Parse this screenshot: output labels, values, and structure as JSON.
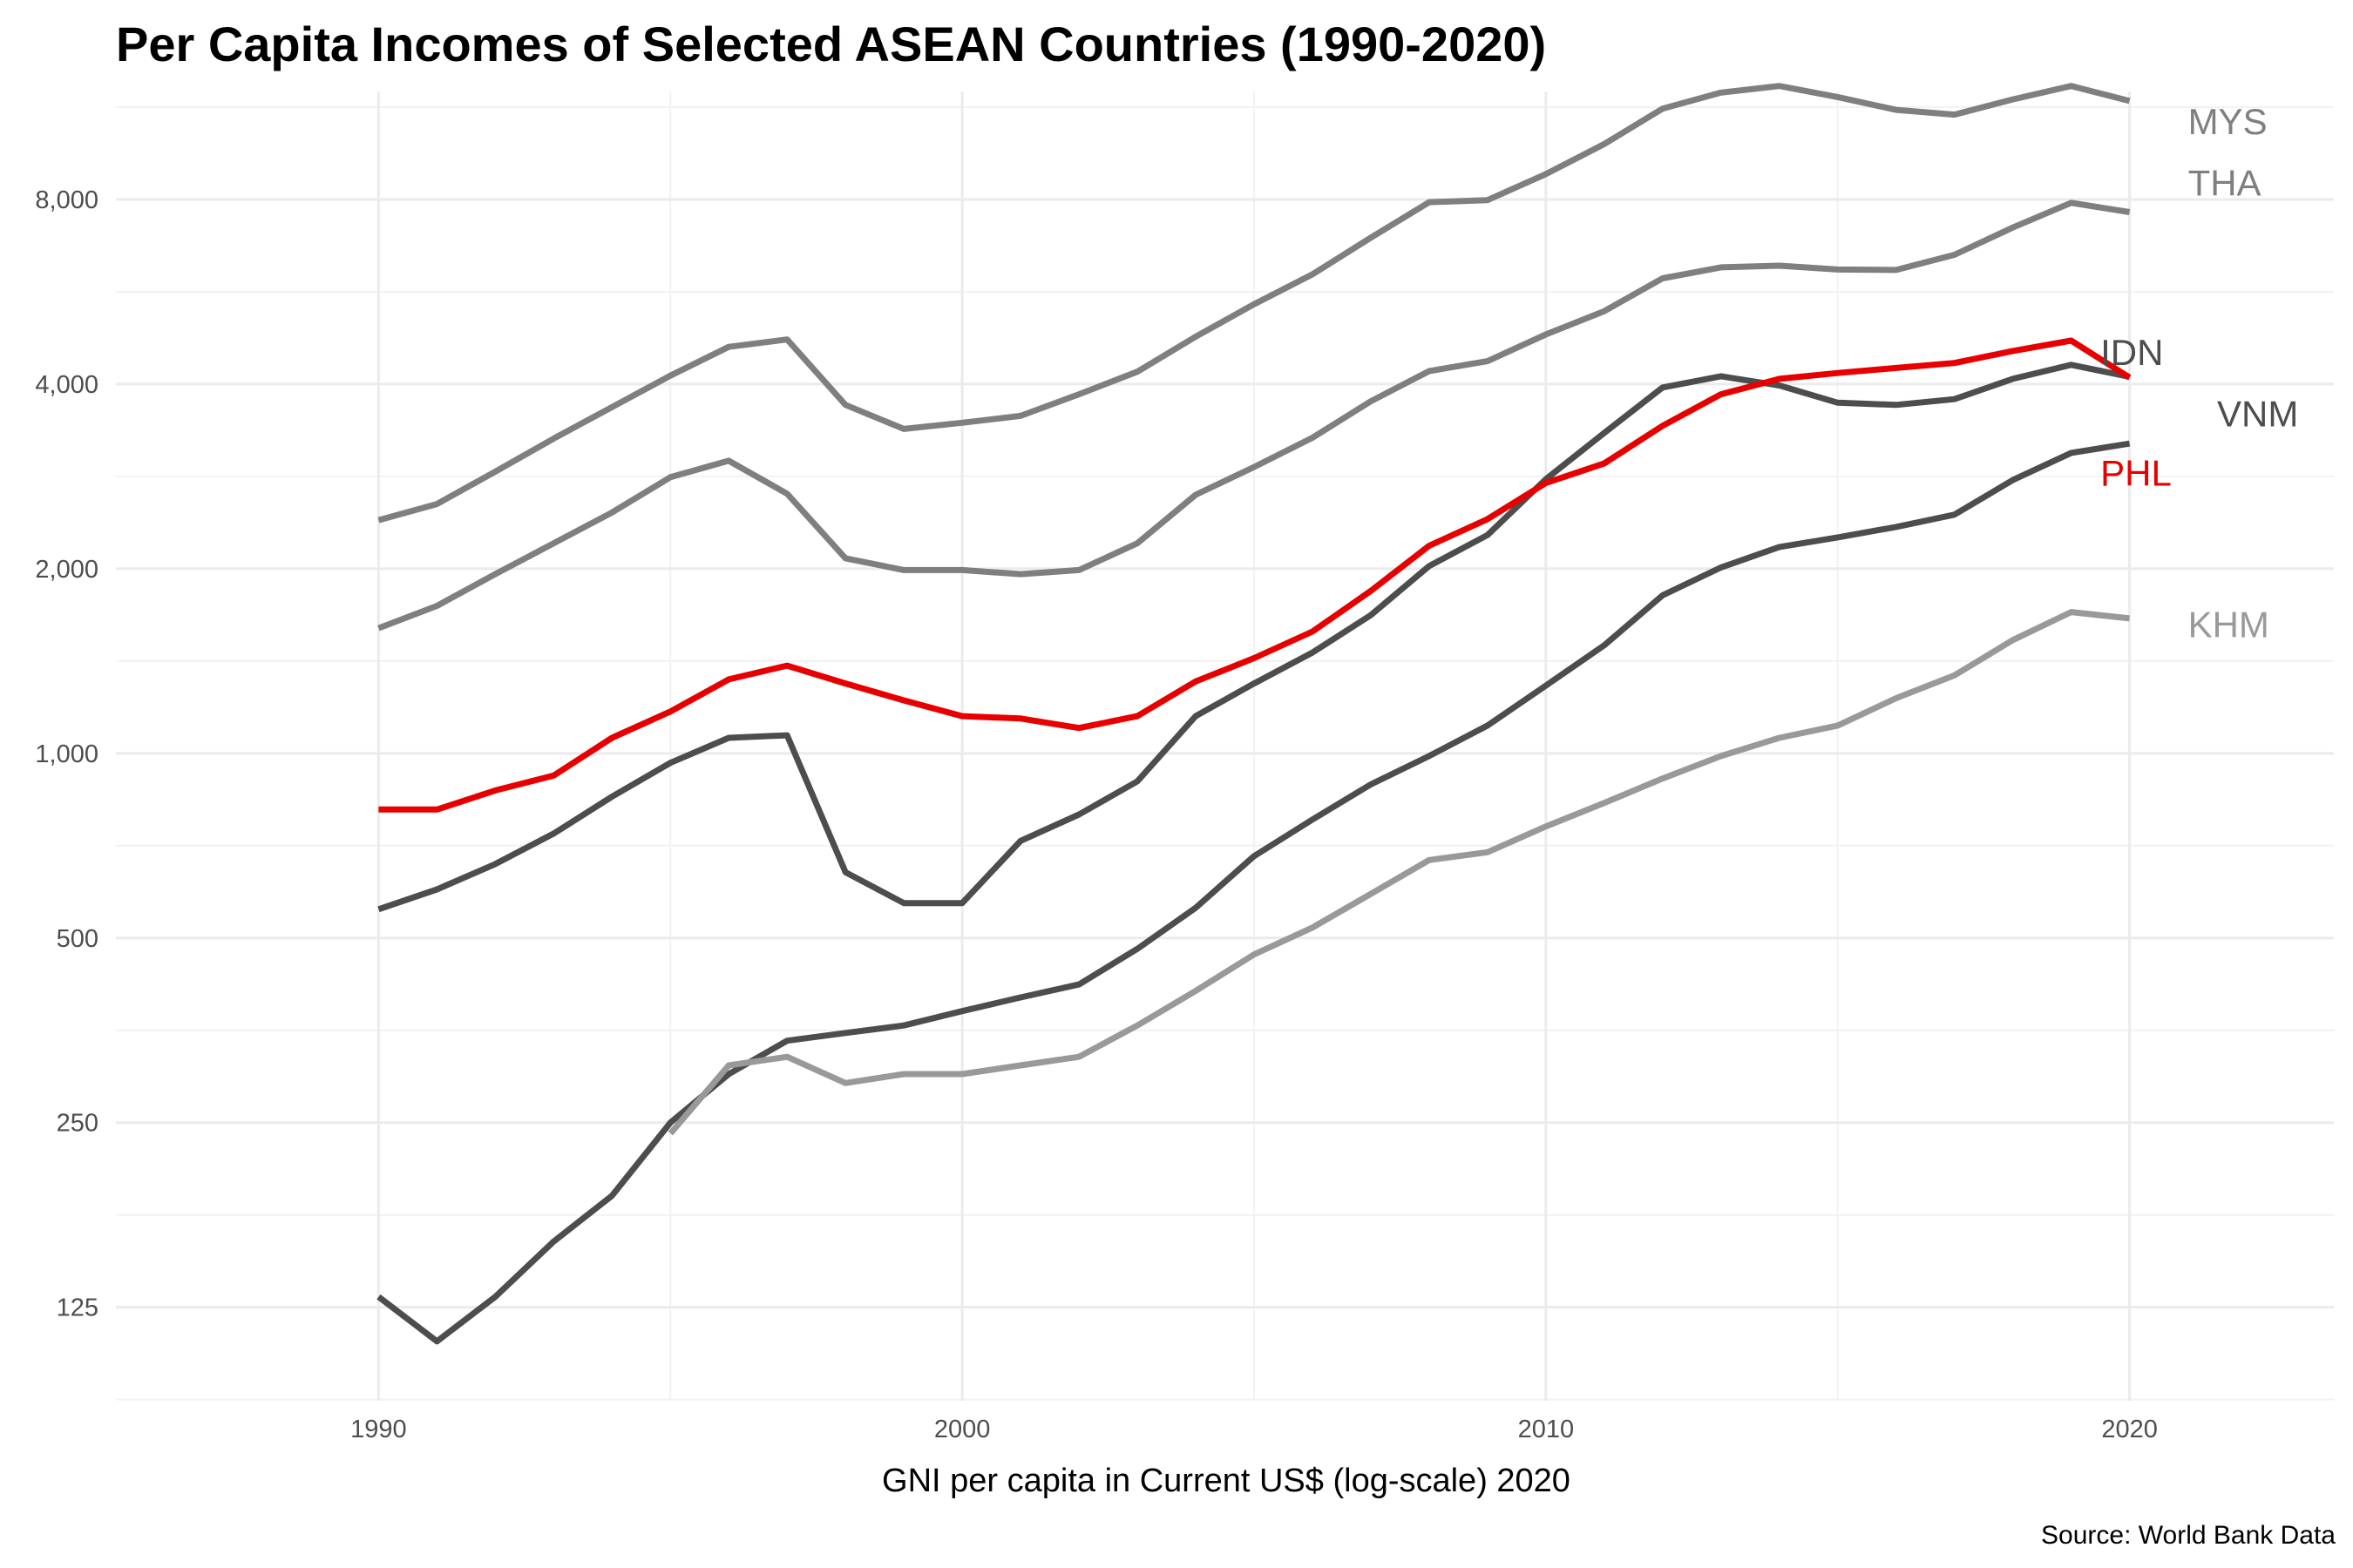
{
  "chart_data": {
    "type": "line",
    "title": "Per Capita Incomes of Selected ASEAN Countries (1990-2020)",
    "xlabel": "GNI per capita in Current US$ (log-scale) 2020",
    "ylabel": "",
    "caption": "Source: World Bank Data",
    "y_scale": "log2",
    "xlim": [
      1985.5,
      2023.5
    ],
    "ylim": [
      88,
      12000
    ],
    "x_ticks": [
      1990,
      2000,
      2010,
      2020
    ],
    "x_tick_labels": [
      "1990",
      "2000",
      "2010",
      "2020"
    ],
    "y_ticks": [
      125,
      250,
      500,
      1000,
      2000,
      4000,
      8000
    ],
    "y_tick_labels": [
      "125",
      "250",
      "500",
      "1,000",
      "2,000",
      "4,000",
      "8,000"
    ],
    "grid": true,
    "legend": "none (direct labels at line ends)",
    "series": [
      {
        "name": "MYS",
        "color": "#7f7f7f",
        "x": [
          1990,
          1991,
          1992,
          1993,
          1994,
          1995,
          1996,
          1997,
          1998,
          1999,
          2000,
          2001,
          2002,
          2003,
          2004,
          2005,
          2006,
          2007,
          2008,
          2009,
          2010,
          2011,
          2012,
          2013,
          2014,
          2015,
          2016,
          2017,
          2018,
          2019,
          2020
        ],
        "values": [
          2400,
          2550,
          2880,
          3260,
          3670,
          4130,
          4600,
          4730,
          3700,
          3380,
          3460,
          3550,
          3850,
          4190,
          4780,
          5400,
          6040,
          6930,
          7920,
          7980,
          8800,
          9850,
          11250,
          11950,
          12250,
          11750,
          11200,
          11000,
          11650,
          12250,
          11580
        ]
      },
      {
        "name": "THA",
        "color": "#7f7f7f",
        "x": [
          1990,
          1991,
          1992,
          1993,
          1994,
          1995,
          1996,
          1997,
          1998,
          1999,
          2000,
          2001,
          2002,
          2003,
          2004,
          2005,
          2006,
          2007,
          2008,
          2009,
          2010,
          2011,
          2012,
          2013,
          2014,
          2015,
          2016,
          2017,
          2018,
          2019,
          2020
        ],
        "values": [
          1600,
          1740,
          1960,
          2200,
          2470,
          2820,
          3000,
          2650,
          2080,
          1990,
          1990,
          1960,
          1990,
          2200,
          2640,
          2930,
          3270,
          3750,
          4200,
          4360,
          4820,
          5260,
          5950,
          6200,
          6240,
          6150,
          6140,
          6500,
          7200,
          7900,
          7630
        ]
      },
      {
        "name": "IDN",
        "color": "#4d4d4d",
        "x": [
          1990,
          1991,
          1992,
          1993,
          1994,
          1995,
          1996,
          1997,
          1998,
          1999,
          2000,
          2001,
          2002,
          2003,
          2004,
          2005,
          2006,
          2007,
          2008,
          2009,
          2010,
          2011,
          2012,
          2013,
          2014,
          2015,
          2016,
          2017,
          2018,
          2019,
          2020
        ],
        "values": [
          557,
          600,
          660,
          740,
          850,
          965,
          1060,
          1070,
          640,
          570,
          570,
          720,
          795,
          900,
          1150,
          1300,
          1460,
          1680,
          2020,
          2270,
          2800,
          3330,
          3950,
          4120,
          3980,
          3730,
          3700,
          3780,
          4080,
          4300,
          4110
        ]
      },
      {
        "name": "VNM",
        "color": "#4d4d4d",
        "x": [
          1990,
          1991,
          1992,
          1993,
          1994,
          1995,
          1996,
          1997,
          1998,
          1999,
          2000,
          2001,
          2002,
          2003,
          2004,
          2005,
          2006,
          2007,
          2008,
          2009,
          2010,
          2011,
          2012,
          2013,
          2014,
          2015,
          2016,
          2017,
          2018,
          2019,
          2020
        ],
        "values": [
          130,
          110,
          130,
          160,
          190,
          250,
          300,
          340,
          350,
          360,
          380,
          400,
          420,
          480,
          560,
          680,
          780,
          890,
          990,
          1110,
          1290,
          1500,
          1810,
          2010,
          2170,
          2250,
          2340,
          2450,
          2790,
          3090,
          3200
        ]
      },
      {
        "name": "PHL",
        "color": "#e80000",
        "x": [
          1990,
          1991,
          1992,
          1993,
          1994,
          1995,
          1996,
          1997,
          1998,
          1999,
          2000,
          2001,
          2002,
          2003,
          2004,
          2005,
          2006,
          2007,
          2008,
          2009,
          2010,
          2011,
          2012,
          2013,
          2014,
          2015,
          2016,
          2017,
          2018,
          2019,
          2020
        ],
        "values": [
          810,
          810,
          870,
          920,
          1060,
          1170,
          1320,
          1390,
          1300,
          1220,
          1150,
          1140,
          1100,
          1150,
          1310,
          1430,
          1580,
          1840,
          2180,
          2410,
          2760,
          2970,
          3420,
          3850,
          4080,
          4170,
          4250,
          4330,
          4530,
          4710,
          4100
        ]
      },
      {
        "name": "KHM",
        "color": "#999999",
        "x": [
          1995,
          1996,
          1997,
          1998,
          1999,
          2000,
          2001,
          2002,
          2003,
          2004,
          2005,
          2006,
          2007,
          2008,
          2009,
          2010,
          2011,
          2012,
          2013,
          2014,
          2015,
          2016,
          2017,
          2018,
          2019,
          2020
        ],
        "values": [
          240,
          310,
          320,
          290,
          300,
          300,
          310,
          320,
          360,
          410,
          470,
          520,
          590,
          670,
          690,
          760,
          830,
          910,
          990,
          1060,
          1110,
          1230,
          1340,
          1530,
          1700,
          1660
        ]
      }
    ],
    "labels": [
      {
        "text": "MYS",
        "series": "MYS",
        "color": "#7f7f7f",
        "x": 2021.0,
        "y": 10700
      },
      {
        "text": "THA",
        "series": "THA",
        "color": "#7f7f7f",
        "x": 2021.0,
        "y": 8500
      },
      {
        "text": "IDN",
        "series": "IDN",
        "color": "#4d4d4d",
        "x": 2019.5,
        "y": 4500
      },
      {
        "text": "VNM",
        "series": "VNM",
        "color": "#4d4d4d",
        "x": 2021.5,
        "y": 3570
      },
      {
        "text": "PHL",
        "series": "PHL",
        "color": "#e80000",
        "x": 2019.5,
        "y": 2860
      },
      {
        "text": "KHM",
        "series": "KHM",
        "color": "#999999",
        "x": 2021.0,
        "y": 1620
      }
    ]
  }
}
